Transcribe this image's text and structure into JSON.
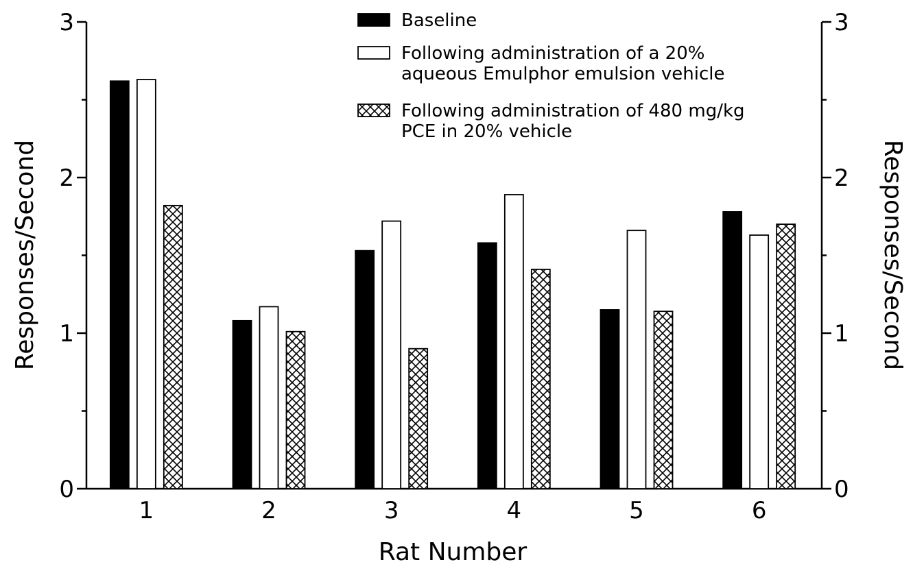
{
  "chart_data": {
    "type": "bar",
    "categories": [
      "1",
      "2",
      "3",
      "4",
      "5",
      "6"
    ],
    "series": [
      {
        "name": "Baseline",
        "values": [
          2.62,
          1.08,
          1.53,
          1.58,
          1.15,
          1.78
        ]
      },
      {
        "name": "Following administration of a 20% aqueous Emulphor emulsion vehicle",
        "values": [
          2.63,
          1.17,
          1.72,
          1.89,
          1.66,
          1.63
        ]
      },
      {
        "name": "Following administration of 480 mg/kg PCE in 20% vehicle",
        "values": [
          1.82,
          1.01,
          0.9,
          1.41,
          1.14,
          1.7
        ]
      }
    ],
    "legend_lines": [
      [
        "Baseline"
      ],
      [
        "Following administration of a 20%",
        "aqueous Emulphor emulsion vehicle"
      ],
      [
        "Following administration of 480 mg/kg",
        "PCE in 20% vehicle"
      ]
    ],
    "series_styles": [
      "solid",
      "open",
      "crosshatch"
    ],
    "xlabel": "Rat Number",
    "ylabel": "Responses/Second",
    "ylabel_right": "Responses/Second",
    "ylim": [
      0,
      3
    ],
    "yticks": [
      0,
      1,
      2,
      3
    ],
    "legend_position": "top-center",
    "grid": false,
    "colors": {
      "solid": "#000000",
      "open": "#ffffff",
      "stroke": "#000000"
    }
  }
}
